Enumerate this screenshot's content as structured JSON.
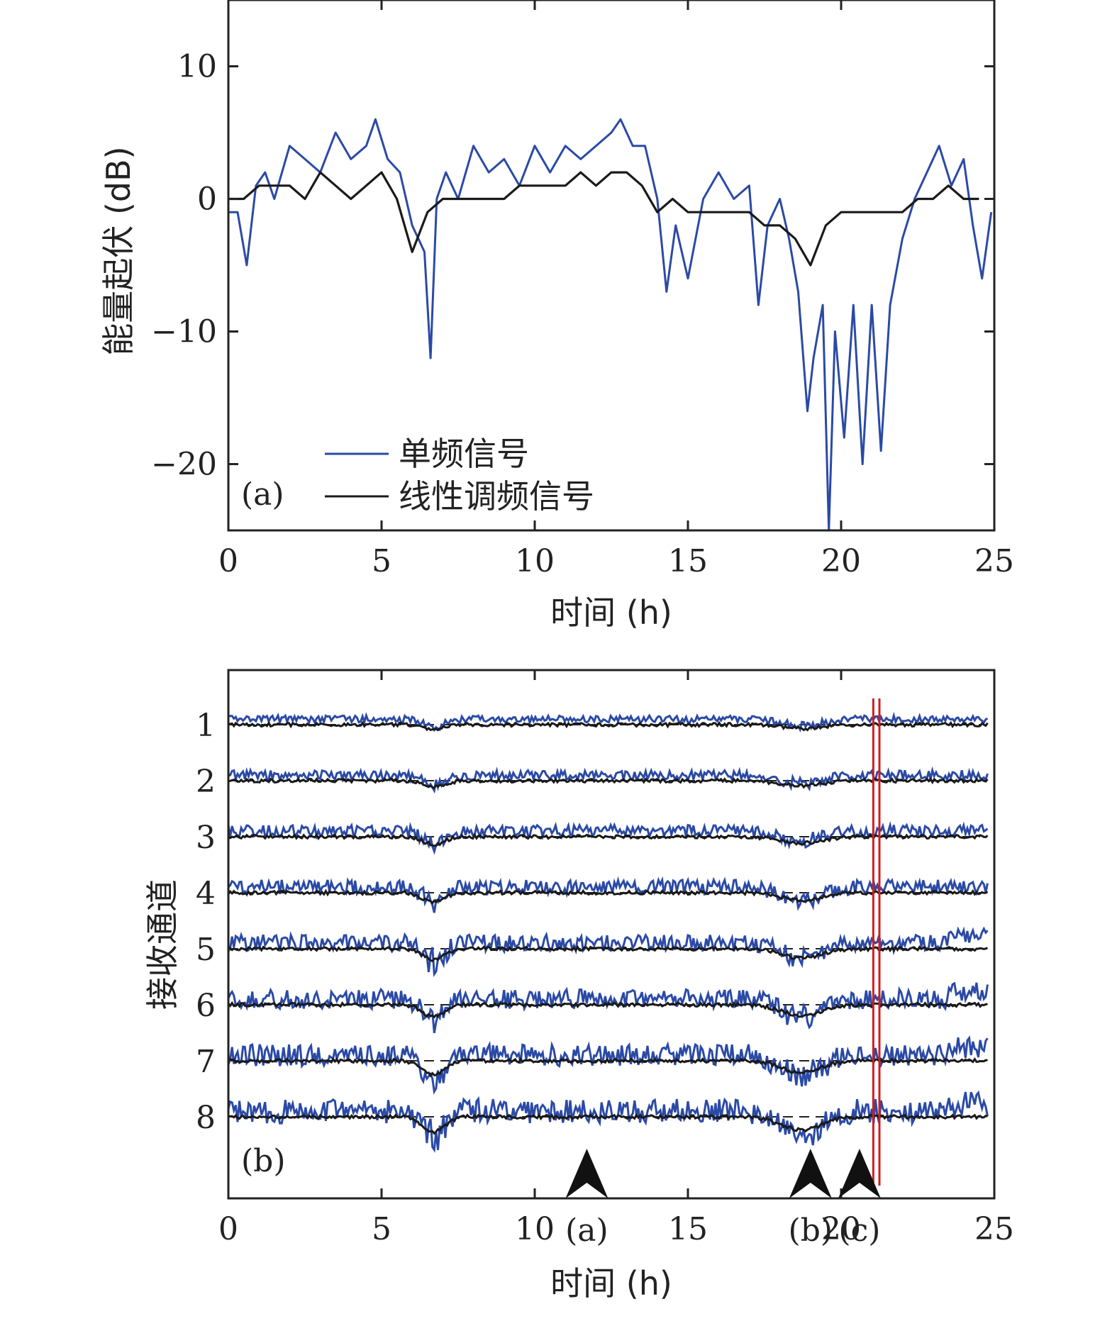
{
  "chart_data": [
    {
      "type": "line",
      "panel": "(a)",
      "xlabel": "时间 (h)",
      "ylabel": "能量起伏 (dB)",
      "xlim": [
        0,
        25
      ],
      "ylim": [
        -25,
        15
      ],
      "xticks": [
        "0",
        "5",
        "10",
        "15",
        "20",
        "25"
      ],
      "yticks": [
        "10",
        "0",
        "−10",
        "−20"
      ],
      "legend_position": "bottom-left",
      "colors": {
        "single": "#2b4aa6",
        "lfm": "#1a1a1a"
      },
      "series": [
        {
          "name": "单频信号",
          "x": [
            0,
            0.3,
            0.6,
            0.9,
            1.2,
            1.5,
            2,
            2.5,
            3,
            3.5,
            4,
            4.5,
            4.8,
            5.2,
            5.6,
            6,
            6.4,
            6.6,
            6.8,
            7.1,
            7.5,
            8,
            8.5,
            9,
            9.5,
            10,
            10.5,
            11,
            11.5,
            12,
            12.5,
            12.8,
            13.2,
            13.6,
            14,
            14.3,
            14.6,
            15,
            15.5,
            16,
            16.5,
            17,
            17.3,
            17.6,
            18,
            18.3,
            18.6,
            18.9,
            19.1,
            19.4,
            19.6,
            19.8,
            20.1,
            20.4,
            20.7,
            21,
            21.3,
            21.6,
            22,
            22.4,
            22.8,
            23.2,
            23.6,
            24,
            24.3,
            24.6,
            24.9
          ],
          "values": [
            -1,
            -1,
            -5,
            1,
            2,
            0,
            4,
            3,
            2,
            5,
            3,
            4,
            6,
            3,
            2,
            -2,
            -4,
            -12,
            0,
            2,
            0,
            4,
            2,
            3,
            1,
            4,
            2,
            4,
            3,
            4,
            5,
            6,
            4,
            4,
            0,
            -7,
            -2,
            -6,
            0,
            2,
            0,
            1,
            -8,
            -2,
            0,
            -3,
            -7,
            -16,
            -12,
            -8,
            -25,
            -10,
            -18,
            -8,
            -20,
            -8,
            -19,
            -8,
            -3,
            0,
            2,
            4,
            1,
            3,
            -2,
            -6,
            -1
          ]
        },
        {
          "name": "线性调频信号",
          "x": [
            0,
            0.5,
            1,
            1.5,
            2,
            2.5,
            3,
            3.5,
            4,
            4.5,
            5,
            5.5,
            6,
            6.5,
            7,
            7.5,
            8,
            8.5,
            9,
            9.5,
            10,
            10.5,
            11,
            11.5,
            12,
            12.5,
            13,
            13.5,
            14,
            14.5,
            15,
            15.5,
            16,
            16.5,
            17,
            17.5,
            18,
            18.5,
            19,
            19.5,
            20,
            20.5,
            21,
            21.5,
            22,
            22.5,
            23,
            23.5,
            24,
            24.5
          ],
          "values": [
            0,
            0,
            1,
            1,
            1,
            0,
            2,
            1,
            0,
            1,
            2,
            0,
            -4,
            -1,
            0,
            0,
            0,
            0,
            0,
            1,
            1,
            1,
            1,
            2,
            1,
            2,
            2,
            1,
            -1,
            0,
            -1,
            -1,
            -1,
            -1,
            -1,
            -2,
            -2,
            -3,
            -5,
            -2,
            -1,
            -1,
            -1,
            -1,
            -1,
            0,
            0,
            1,
            0,
            0
          ]
        }
      ]
    },
    {
      "type": "line",
      "panel": "(b)",
      "xlabel": "时间 (h)",
      "ylabel": "接收通道",
      "xlim": [
        0,
        25
      ],
      "xticks": [
        "0",
        "5",
        "10",
        "15",
        "20",
        "25"
      ],
      "channels": [
        "1",
        "2",
        "3",
        "4",
        "5",
        "6",
        "7",
        "8"
      ],
      "markers": [
        {
          "label": "(a)",
          "x": 11.7
        },
        {
          "label": "(b)",
          "x": 19.0
        },
        {
          "label": "(c)",
          "x": 20.6
        }
      ],
      "red_lines_x": [
        21.05,
        21.25
      ],
      "colors": {
        "single": "#2b4aa6",
        "lfm": "#1a1a1a",
        "marker": "#cc1f1f"
      }
    }
  ]
}
